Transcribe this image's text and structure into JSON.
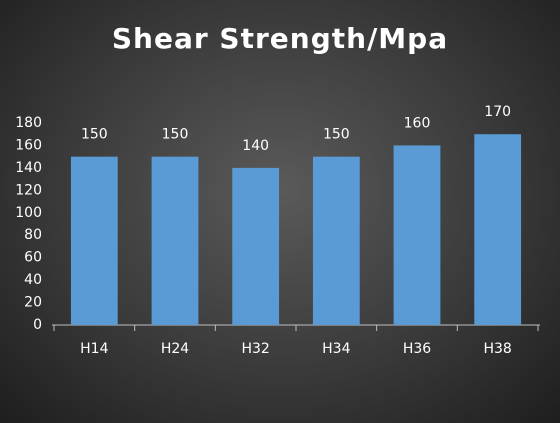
{
  "chart_data": {
    "type": "bar",
    "title": "Shear Strength/Mpa",
    "categories": [
      "H14",
      "H24",
      "H32",
      "H34",
      "H36",
      "H38"
    ],
    "values": [
      150,
      150,
      140,
      150,
      160,
      170
    ],
    "color": "#5b9bd5",
    "ylim": [
      0,
      180
    ],
    "yticks": [
      0,
      20,
      40,
      60,
      80,
      100,
      120,
      140,
      160,
      180
    ],
    "grid": false
  }
}
